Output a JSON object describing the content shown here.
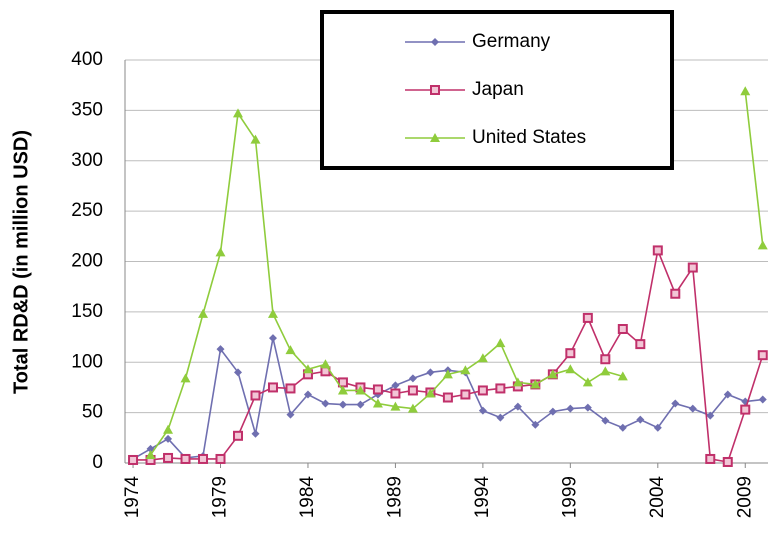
{
  "chart_data": {
    "type": "line",
    "y_label": "Total RD&D (in million USD)",
    "x": [
      1974,
      1975,
      1976,
      1977,
      1978,
      1979,
      1980,
      1981,
      1982,
      1983,
      1984,
      1985,
      1986,
      1987,
      1988,
      1989,
      1990,
      1991,
      1992,
      1993,
      1994,
      1995,
      1996,
      1997,
      1998,
      1999,
      2000,
      2001,
      2002,
      2003,
      2004,
      2005,
      2006,
      2007,
      2008,
      2009,
      2010
    ],
    "series": [
      {
        "name": "Germany",
        "color": "#6f6fb0",
        "marker": "diamond",
        "values": [
          4,
          14,
          24,
          5,
          7,
          113,
          90,
          29,
          124,
          48,
          68,
          59,
          58,
          58,
          68,
          77,
          84,
          90,
          92,
          90,
          52,
          45,
          56,
          38,
          51,
          54,
          55,
          42,
          35,
          43,
          35,
          59,
          54,
          47,
          68,
          61,
          63
        ]
      },
      {
        "name": "Japan",
        "color": "#c0306a",
        "marker": "square",
        "values": [
          3,
          3,
          5,
          4,
          4,
          4,
          27,
          67,
          75,
          74,
          88,
          91,
          80,
          75,
          73,
          69,
          72,
          70,
          65,
          68,
          72,
          74,
          76,
          78,
          88,
          109,
          144,
          103,
          133,
          118,
          211,
          168,
          194,
          4,
          1,
          53,
          107
        ]
      },
      {
        "name": "United States",
        "color": "#8fcc3c",
        "marker": "triangle",
        "values": [
          null,
          8,
          33,
          84,
          148,
          209,
          347,
          321,
          148,
          112,
          93,
          98,
          72,
          72,
          59,
          56,
          54,
          69,
          88,
          92,
          104,
          119,
          80,
          78,
          88,
          93,
          80,
          91,
          86,
          null,
          null,
          null,
          null,
          null,
          null,
          369,
          216
        ]
      }
    ],
    "xlim": [
      1973.54,
      2010.3
    ],
    "xticks": [
      1974,
      1979,
      1984,
      1989,
      1994,
      1999,
      2004,
      2009
    ],
    "ylim": [
      0,
      400
    ],
    "yticks": [
      0,
      50,
      100,
      150,
      200,
      250,
      300,
      350,
      400
    ],
    "grid": true
  }
}
